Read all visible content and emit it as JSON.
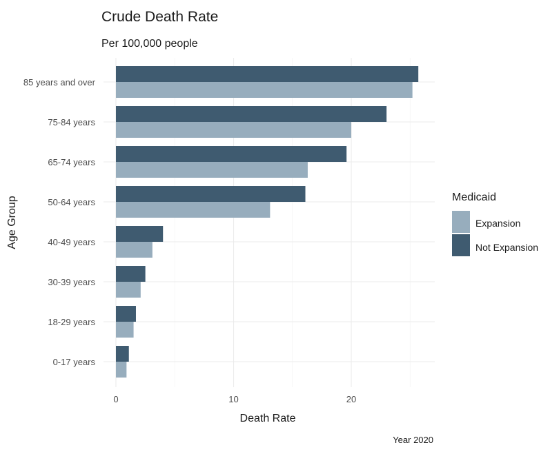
{
  "chart_data": {
    "type": "bar",
    "orientation": "horizontal",
    "title": "Crude Death Rate",
    "subtitle": "Per 100,000 people",
    "xlabel": "Death Rate",
    "ylabel": "Age Group",
    "caption": "Year 2020",
    "categories": [
      "85 years and over",
      "75-84 years",
      "65-74 years",
      "50-64 years",
      "40-49 years",
      "30-39 years",
      "18-29 years",
      "0-17 years"
    ],
    "series": [
      {
        "name": "Not Expansion",
        "color": "#3f5b70",
        "values": [
          25.7,
          23.0,
          19.6,
          16.1,
          4.0,
          2.5,
          1.7,
          1.1
        ]
      },
      {
        "name": "Expansion",
        "color": "#97adbd",
        "values": [
          25.2,
          20.0,
          16.3,
          13.1,
          3.1,
          2.1,
          1.5,
          0.9
        ]
      }
    ],
    "xlim": [
      0,
      27
    ],
    "xticks": [
      "0",
      "10",
      "20"
    ],
    "grid": true,
    "legend": {
      "title": "Medicaid",
      "position": "right",
      "items": [
        {
          "label": "Expansion",
          "color": "#97adbd"
        },
        {
          "label": "Not Expansion",
          "color": "#3f5b70"
        }
      ]
    }
  }
}
